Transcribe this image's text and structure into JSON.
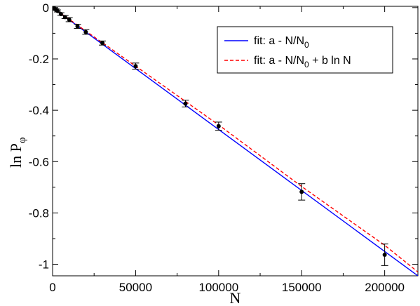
{
  "chart_data": {
    "type": "scatter",
    "xlabel": "N",
    "ylabel_main": "ln P",
    "ylabel_sub": "φ",
    "xlim": [
      0,
      220000
    ],
    "ylim": [
      -1.045,
      0.005
    ],
    "x_ticks": [
      0,
      50000,
      100000,
      150000,
      200000
    ],
    "x_tick_labels": [
      "0",
      "50000",
      "100000",
      "150000",
      "200000"
    ],
    "y_ticks": [
      0,
      -0.2,
      -0.4,
      -0.6,
      -0.8,
      -1
    ],
    "y_tick_labels": [
      "0",
      "-0.2",
      "-0.4",
      "-0.6",
      "-0.8",
      "-1"
    ],
    "grid": false,
    "legend_position": "top-right",
    "series": [
      {
        "name": "data",
        "kind": "points_with_errorbars",
        "color": "#000000",
        "points": [
          {
            "x": 1000,
            "y": -0.003,
            "err": 0.003
          },
          {
            "x": 2000,
            "y": -0.008,
            "err": 0.003
          },
          {
            "x": 3000,
            "y": -0.013,
            "err": 0.004
          },
          {
            "x": 5000,
            "y": -0.025,
            "err": 0.005
          },
          {
            "x": 7500,
            "y": -0.037,
            "err": 0.006
          },
          {
            "x": 10000,
            "y": -0.047,
            "err": 0.008
          },
          {
            "x": 15000,
            "y": -0.073,
            "err": 0.008
          },
          {
            "x": 20000,
            "y": -0.095,
            "err": 0.009
          },
          {
            "x": 30000,
            "y": -0.138,
            "err": 0.008
          },
          {
            "x": 50000,
            "y": -0.228,
            "err": 0.012
          },
          {
            "x": 80000,
            "y": -0.374,
            "err": 0.013
          },
          {
            "x": 100000,
            "y": -0.462,
            "err": 0.016
          },
          {
            "x": 150000,
            "y": -0.718,
            "err": 0.032
          },
          {
            "x": 200000,
            "y": -0.963,
            "err": 0.042
          }
        ]
      },
      {
        "legend_label": "fit:   a - N/N",
        "legend_sub": "0",
        "kind": "line",
        "color": "#0000ff",
        "dashed": false,
        "x": [
          0,
          220000
        ],
        "y": [
          0.0,
          -1.045
        ]
      },
      {
        "legend_label": "fit:   a - N/N",
        "legend_sub": "0",
        "legend_tail": " + b ln N",
        "kind": "line",
        "color": "#ff0000",
        "dashed": true,
        "x": [
          0,
          50000,
          100000,
          150000,
          200000,
          220000
        ],
        "y": [
          0.0,
          -0.228,
          -0.457,
          -0.697,
          -0.926,
          -1.03
        ]
      }
    ]
  }
}
